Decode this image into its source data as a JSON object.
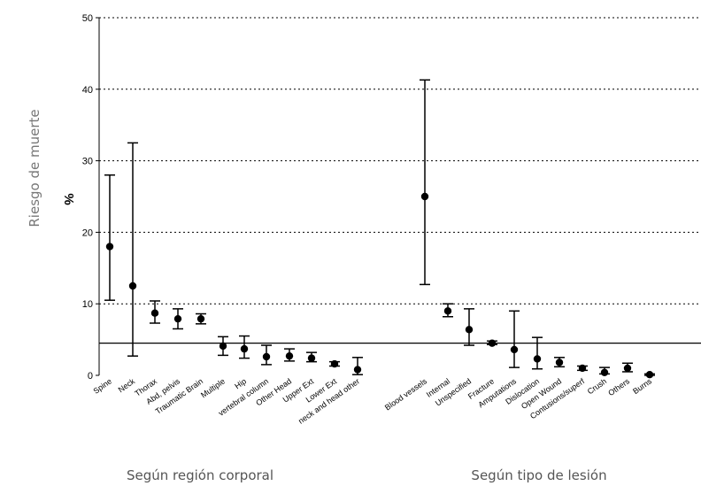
{
  "chart_data": {
    "type": "scatter",
    "ylabel": "Riesgo de muerte",
    "yunit": "%",
    "ylim": [
      0,
      50
    ],
    "yticks": [
      "0",
      "10",
      "20",
      "30",
      "40",
      "50"
    ],
    "grid": "dotted horizontal",
    "reference_line": 4.5,
    "groups": [
      {
        "label": "Según región corporal",
        "categories": [
          "Spine",
          "Neck",
          "Thorax",
          "Abd, pelvis",
          "Traumatic Brain",
          "Multiple",
          "Hip",
          "vertebral column",
          "Other Head",
          "Upper Ext",
          "Lower Ext",
          "neck and head other"
        ],
        "points": [
          {
            "estimate": 18.0,
            "lower": 10.5,
            "upper": 28.0
          },
          {
            "estimate": 12.5,
            "lower": 2.7,
            "upper": 32.5
          },
          {
            "estimate": 8.7,
            "lower": 7.3,
            "upper": 10.4
          },
          {
            "estimate": 7.9,
            "lower": 6.5,
            "upper": 9.3
          },
          {
            "estimate": 7.9,
            "lower": 7.2,
            "upper": 8.6
          },
          {
            "estimate": 4.1,
            "lower": 2.8,
            "upper": 5.4
          },
          {
            "estimate": 3.7,
            "lower": 2.4,
            "upper": 5.5
          },
          {
            "estimate": 2.6,
            "lower": 1.5,
            "upper": 4.2
          },
          {
            "estimate": 2.7,
            "lower": 2.0,
            "upper": 3.7
          },
          {
            "estimate": 2.4,
            "lower": 1.9,
            "upper": 3.2
          },
          {
            "estimate": 1.6,
            "lower": 1.3,
            "upper": 1.9
          },
          {
            "estimate": 0.8,
            "lower": 0.1,
            "upper": 2.5
          }
        ]
      },
      {
        "label": "Según tipo de lesión",
        "categories": [
          "Blood vessels",
          "Internal",
          "Unspecified",
          "Fracture",
          "Amputations",
          "Dislocation",
          "Open Wound",
          "Contusions/superf",
          "Crush",
          "Others",
          "Burns"
        ],
        "points": [
          {
            "estimate": 25.0,
            "lower": 12.7,
            "upper": 41.3
          },
          {
            "estimate": 9.0,
            "lower": 8.2,
            "upper": 10.0
          },
          {
            "estimate": 6.4,
            "lower": 4.2,
            "upper": 9.3
          },
          {
            "estimate": 4.5,
            "lower": 4.3,
            "upper": 4.8
          },
          {
            "estimate": 3.6,
            "lower": 1.1,
            "upper": 9.0
          },
          {
            "estimate": 2.3,
            "lower": 0.9,
            "upper": 5.3
          },
          {
            "estimate": 1.8,
            "lower": 1.2,
            "upper": 2.5
          },
          {
            "estimate": 1.0,
            "lower": 0.7,
            "upper": 1.3
          },
          {
            "estimate": 0.4,
            "lower": 0.2,
            "upper": 1.1
          },
          {
            "estimate": 1.0,
            "lower": 0.5,
            "upper": 1.7
          },
          {
            "estimate": 0.1,
            "lower": 0.0,
            "upper": 0.2
          }
        ]
      }
    ]
  }
}
